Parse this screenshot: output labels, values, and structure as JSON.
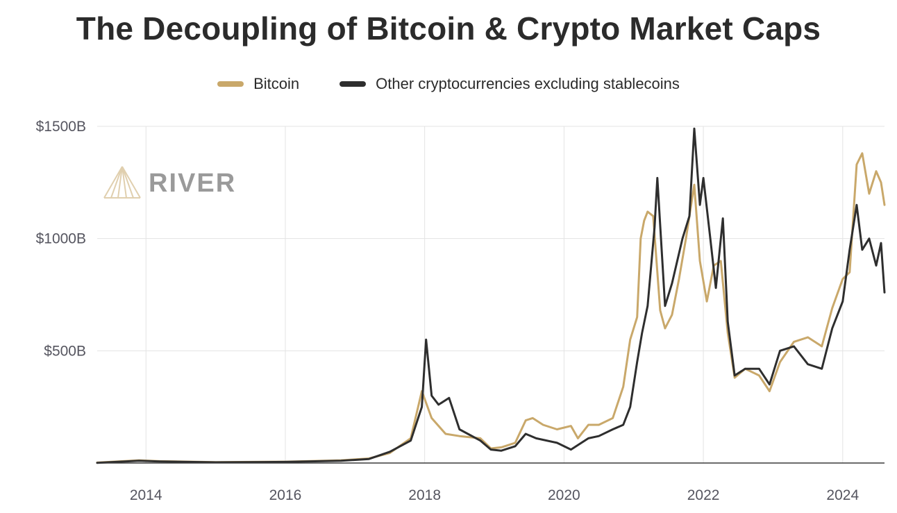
{
  "chart_data": {
    "type": "line",
    "title": "The Decoupling of Bitcoin & Crypto Market Caps",
    "xlabel": "",
    "ylabel": "",
    "x_ticks": [
      "2014",
      "2016",
      "2018",
      "2020",
      "2022",
      "2024"
    ],
    "y_ticks": [
      "$500B",
      "$1000B",
      "$1500B"
    ],
    "xlim": [
      2013.3,
      2024.6
    ],
    "ylim": [
      0,
      1500
    ],
    "grid": true,
    "legend_position": "top-center",
    "series": [
      {
        "name": "Bitcoin",
        "color": "#c9a86a",
        "x": [
          2013.3,
          2013.9,
          2014.2,
          2015.0,
          2016.0,
          2016.8,
          2017.2,
          2017.5,
          2017.8,
          2017.96,
          2018.1,
          2018.3,
          2018.5,
          2018.8,
          2018.95,
          2019.1,
          2019.3,
          2019.45,
          2019.55,
          2019.7,
          2019.9,
          2020.1,
          2020.2,
          2020.35,
          2020.5,
          2020.7,
          2020.85,
          2020.95,
          2021.05,
          2021.1,
          2021.15,
          2021.2,
          2021.28,
          2021.38,
          2021.45,
          2021.55,
          2021.65,
          2021.75,
          2021.87,
          2021.95,
          2022.05,
          2022.15,
          2022.25,
          2022.35,
          2022.45,
          2022.6,
          2022.8,
          2022.95,
          2023.1,
          2023.3,
          2023.5,
          2023.7,
          2023.85,
          2024.0,
          2024.1,
          2024.2,
          2024.28,
          2024.38,
          2024.48,
          2024.55,
          2024.6
        ],
        "y": [
          2,
          12,
          8,
          4,
          6,
          12,
          20,
          45,
          110,
          320,
          200,
          130,
          120,
          110,
          65,
          70,
          90,
          190,
          200,
          170,
          150,
          165,
          110,
          170,
          170,
          200,
          340,
          550,
          650,
          1000,
          1080,
          1120,
          1100,
          680,
          600,
          660,
          820,
          1000,
          1240,
          900,
          720,
          880,
          900,
          580,
          380,
          420,
          390,
          320,
          450,
          540,
          560,
          520,
          690,
          820,
          850,
          1330,
          1380,
          1200,
          1300,
          1250,
          1150
        ]
      },
      {
        "name": "Other cryptocurrencies excluding stablecoins",
        "color": "#2e2e2e",
        "x": [
          2013.3,
          2013.9,
          2014.2,
          2015.0,
          2016.0,
          2016.8,
          2017.2,
          2017.5,
          2017.8,
          2017.96,
          2018.02,
          2018.1,
          2018.2,
          2018.35,
          2018.5,
          2018.8,
          2018.95,
          2019.1,
          2019.3,
          2019.45,
          2019.6,
          2019.9,
          2020.1,
          2020.2,
          2020.35,
          2020.5,
          2020.7,
          2020.85,
          2020.95,
          2021.05,
          2021.12,
          2021.2,
          2021.3,
          2021.34,
          2021.45,
          2021.55,
          2021.7,
          2021.8,
          2021.87,
          2021.95,
          2022.0,
          2022.1,
          2022.18,
          2022.28,
          2022.35,
          2022.45,
          2022.6,
          2022.8,
          2022.95,
          2023.1,
          2023.3,
          2023.5,
          2023.7,
          2023.85,
          2024.0,
          2024.1,
          2024.2,
          2024.28,
          2024.38,
          2024.48,
          2024.55,
          2024.6
        ],
        "y": [
          1,
          10,
          7,
          3,
          5,
          10,
          18,
          50,
          100,
          250,
          550,
          300,
          260,
          290,
          150,
          100,
          60,
          55,
          75,
          130,
          110,
          90,
          60,
          80,
          110,
          120,
          150,
          170,
          250,
          450,
          580,
          700,
          1050,
          1270,
          700,
          800,
          1000,
          1100,
          1490,
          1150,
          1270,
          1000,
          780,
          1090,
          630,
          390,
          420,
          420,
          350,
          500,
          520,
          440,
          420,
          600,
          720,
          950,
          1150,
          950,
          1000,
          880,
          980,
          760
        ]
      }
    ]
  },
  "watermark": {
    "text": "RIVER"
  },
  "colors": {
    "grid": "#e3e3e3",
    "axis": "#3a3a3a",
    "bitcoin": "#c9a86a",
    "others": "#2e2e2e"
  }
}
